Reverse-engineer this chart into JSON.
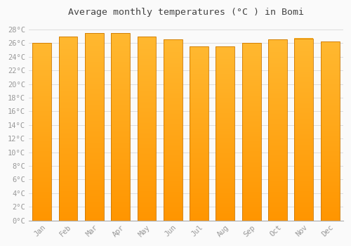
{
  "title": "Average monthly temperatures (°C ) in Bomi",
  "months": [
    "Jan",
    "Feb",
    "Mar",
    "Apr",
    "May",
    "Jun",
    "Jul",
    "Aug",
    "Sep",
    "Oct",
    "Nov",
    "Dec"
  ],
  "values": [
    26.0,
    27.0,
    27.5,
    27.5,
    27.0,
    26.5,
    25.5,
    25.5,
    26.0,
    26.5,
    26.7,
    26.2
  ],
  "ylim": [
    0,
    29
  ],
  "yticks": [
    0,
    2,
    4,
    6,
    8,
    10,
    12,
    14,
    16,
    18,
    20,
    22,
    24,
    26,
    28
  ],
  "bar_color_top": "#FFB830",
  "bar_color_bottom": "#FF9500",
  "bar_edge_color": "#CC7700",
  "background_color": "#FAFAFA",
  "grid_color": "#DDDDDD",
  "tick_label_color": "#999999",
  "title_color": "#444444",
  "title_fontsize": 9.5,
  "tick_fontsize": 7.5,
  "bar_width": 0.72,
  "n_grad": 200
}
